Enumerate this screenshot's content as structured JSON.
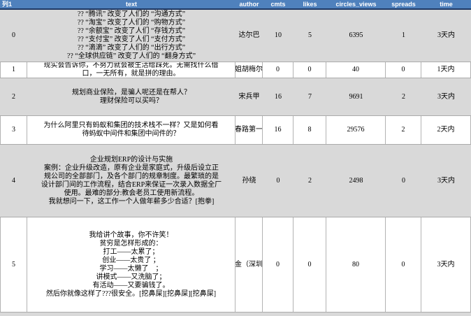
{
  "app": {
    "description": "Spreadsheet table of social posts with engagement stats"
  },
  "colors": {
    "header_bg": "#4F81BD",
    "header_text": "#FFFFFF",
    "header_underline": "#1F3864",
    "band_row_bg": "#D9D9D9",
    "white_row_bg": "#FFFFFF",
    "grid_line": "#B3B3B3",
    "body_text": "#000000"
  },
  "table": {
    "header": [
      "列1",
      "text",
      "author",
      "cmts",
      "likes",
      "circles_views",
      "spreads",
      "time"
    ],
    "rows": [
      {
        "index": "0",
        "text": "?? “腾讯” 改变了人们的 “沟通方式”\n?? “淘宝” 改变了人们的 “购物方式”\n?? “余额宝” 改变了人们 “存钱方式”\n?? “支付宝” 改变了人们 “支付方式”\n?? “滴滴” 改变了人们的 “出行方式”\n?? “全球供应链” 改变了人们的 “翻身方式”",
        "author": "达尔巴",
        "cmts": "10",
        "likes": "5",
        "circles_views": "6395",
        "spreads": "1",
        "time": "3天内"
      },
      {
        "index": "1",
        "text": "现实会告诉你，不努力就会被生活给踩死。无需找什么借\n口，一无所有，就是拼的理由。",
        "author": "瓜姐胡梅尔斯",
        "cmts": "0",
        "likes": "0",
        "circles_views": "40",
        "spreads": "0",
        "time": "1天内"
      },
      {
        "index": "2",
        "text": "规划商业保险，是骗人呢还是在帮人？\n理财保险可以买吗？",
        "author": "宋兵甲",
        "cmts": "16",
        "likes": "7",
        "circles_views": "9691",
        "spreads": "2",
        "time": "3天内"
      },
      {
        "index": "3",
        "text": "为什么阿里只有蚂蚁和集团的技术栈不一样？又是如何看\n待蚂蚁中间件和集团中间件的？",
        "author": "长春路第一帅",
        "cmts": "16",
        "likes": "8",
        "circles_views": "29576",
        "spreads": "2",
        "time": "2天内"
      },
      {
        "index": "4",
        "text": "企业规划ERP的设计与实施\n案例：企业升级改造，原有企业是家庭式，升级后设立正\n规公司的全部部门，及各个部门的规章制度。最繁琐的是\n设计部门间的工作流程，结合ERP来保证一次录入数据全厂\n使用。最难的部分:教会老员工使用新流程。\n我就想问一下，这工作一个人做年薪多少合适？[抱拳]",
        "author": "孙绕",
        "cmts": "0",
        "likes": "2",
        "circles_views": "2498",
        "spreads": "0",
        "time": "3天内"
      },
      {
        "index": "5",
        "text": "我给讲个故事，你不许笑！\n贫穷是怎样形成的：\n打工——太累了；\n创业——太贵了 ；\n学习——太懒了　；\n讲模式——又洗脑了；\n有活动——又要骗钱了。\n然后你就像这样了???很安全。[挖鼻屎][挖鼻屎][挖鼻屎]",
        "author": "五金（深圳）",
        "cmts": "0",
        "likes": "0",
        "circles_views": "80",
        "spreads": "0",
        "time": "3天内"
      }
    ]
  }
}
